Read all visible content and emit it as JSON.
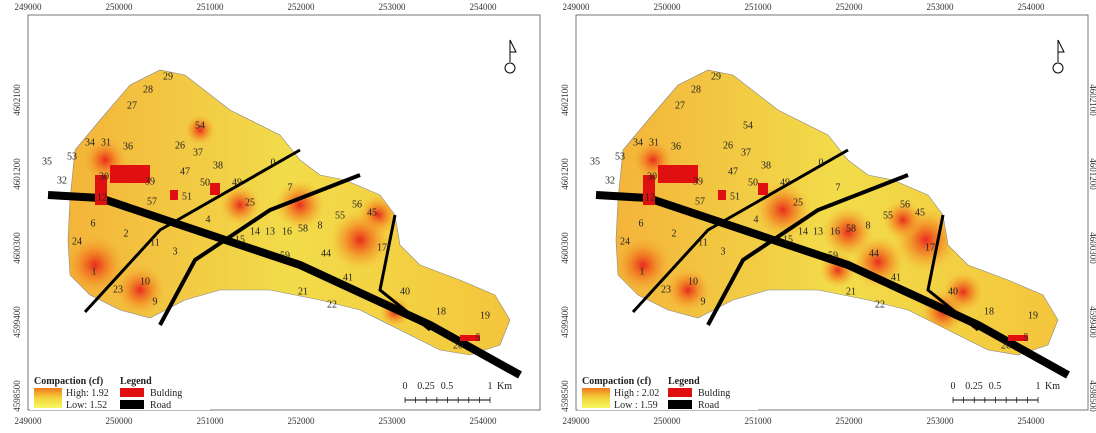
{
  "panels": [
    {
      "x_labels": [
        "249000",
        "250000",
        "251000",
        "252000",
        "253000",
        "254000"
      ],
      "y_labels": [
        "4602100",
        "4601200",
        "4600300",
        "4599400",
        "4598500"
      ],
      "parcels": [
        "29",
        "28",
        "27",
        "54",
        "35",
        "53",
        "34",
        "31",
        "36",
        "26",
        "37",
        "38",
        "0",
        "32",
        "30",
        "39",
        "47",
        "50",
        "49",
        "7",
        "12",
        "57",
        "51",
        "25",
        "6",
        "4",
        "45",
        "56",
        "55",
        "8",
        "14",
        "13",
        "16",
        "58",
        "15",
        "24",
        "2",
        "11",
        "17",
        "3",
        "59",
        "44",
        "1",
        "10",
        "41",
        "21",
        "23",
        "40",
        "9",
        "22",
        "18",
        "19",
        "20",
        "5"
      ],
      "legend": {
        "ramp_title": "Compaction (cf)",
        "high": "High: 1.92",
        "low": "Low: 1.52",
        "title": "Legend",
        "building": "Bulding",
        "road": "Road"
      },
      "scale": {
        "ticks": [
          "0",
          "0.25",
          "0.5",
          "1"
        ],
        "unit": "Km"
      }
    },
    {
      "x_labels": [
        "249000",
        "250000",
        "251000",
        "252000",
        "253000",
        "254000"
      ],
      "y_labels": [
        "4602100",
        "4601200",
        "4600300",
        "4599400",
        "4598500"
      ],
      "parcels": [
        "29",
        "28",
        "27",
        "54",
        "35",
        "53",
        "34",
        "31",
        "36",
        "26",
        "37",
        "38",
        "0",
        "32",
        "30",
        "39",
        "47",
        "50",
        "49",
        "7",
        "12",
        "57",
        "51",
        "25",
        "6",
        "4",
        "45",
        "56",
        "55",
        "8",
        "14",
        "13",
        "16",
        "58",
        "15",
        "24",
        "2",
        "11",
        "17",
        "3",
        "59",
        "44",
        "1",
        "10",
        "41",
        "21",
        "23",
        "40",
        "9",
        "22",
        "18",
        "19",
        "20",
        "5"
      ],
      "legend": {
        "ramp_title": "Compaction (cf)",
        "high": "High : 2.02",
        "low": "Low : 1.59",
        "title": "Legend",
        "building": "Bulding",
        "road": "Road"
      },
      "scale": {
        "ticks": [
          "0",
          "0.25",
          "0.5",
          "1"
        ],
        "unit": "Km"
      }
    }
  ]
}
